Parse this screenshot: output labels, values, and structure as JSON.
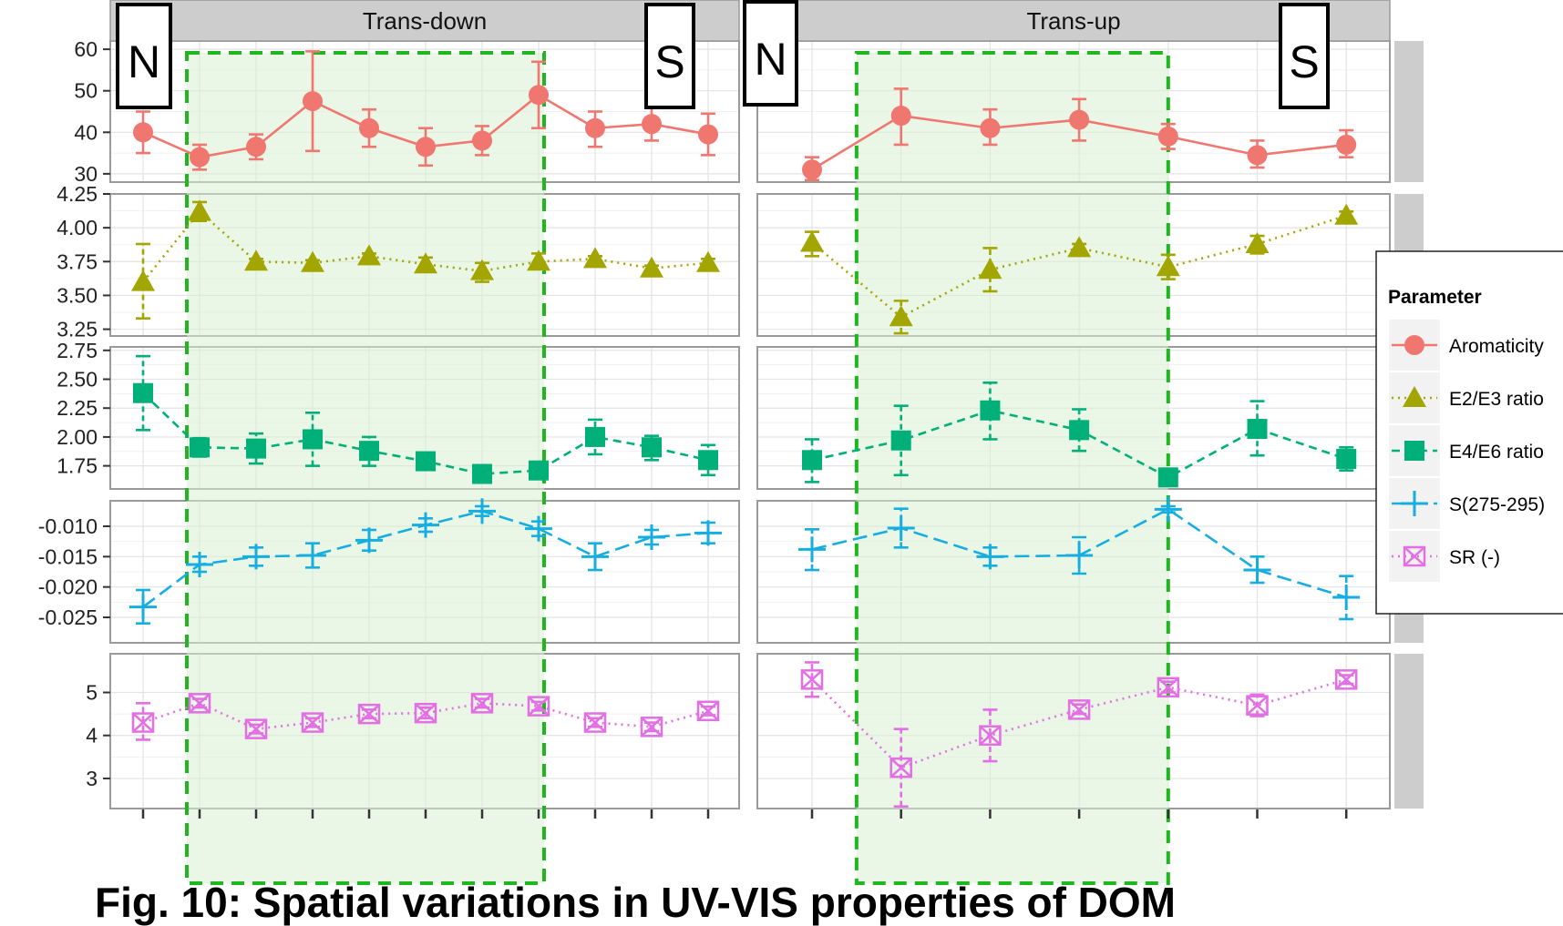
{
  "chart_data": {
    "type": "line",
    "facets": [
      "Trans-down",
      "Trans-up"
    ],
    "site_markers": {
      "north": "N",
      "south": "S"
    },
    "legend": {
      "title": "Parameter",
      "position": "right",
      "entries": [
        "Aromaticity",
        "E2/E3 ratio",
        "E4/E6 ratio",
        "S(275-295)",
        "SR (-)"
      ]
    },
    "colors": {
      "Aromaticity": "#f07670",
      "E2/E3 ratio": "#a3a500",
      "E4/E6 ratio": "#00b078",
      "S(275-295)": "#16aee0",
      "SR (-)": "#e36fe4",
      "highlight_fill": "#d8f1d4",
      "highlight_border": "#1fb61f",
      "strip": "#cdcdcd",
      "panel_border": "#9a9a9a"
    },
    "grid": true,
    "highlight": {
      "style": "green dashed box with light green fill",
      "Trans-down": {
        "from_site": 2,
        "to_site": 8
      },
      "Trans-up": {
        "from_site": 1.5,
        "to_site": 5
      }
    },
    "rows": [
      {
        "parameter": "Aromaticity",
        "marker": "circle",
        "line": "solid",
        "ylim": [
          28,
          62
        ],
        "yticks": [
          "30",
          "40",
          "50",
          "60"
        ],
        "ytick_values": [
          30,
          40,
          50,
          60
        ],
        "Trans-down": [
          {
            "site": 1,
            "y": 40,
            "lo": 35,
            "hi": 45
          },
          {
            "site": 2,
            "y": 34,
            "lo": 31,
            "hi": 37
          },
          {
            "site": 3,
            "y": 36.5,
            "lo": 33.5,
            "hi": 39.5
          },
          {
            "site": 4,
            "y": 47.5,
            "lo": 35.5,
            "hi": 59.5
          },
          {
            "site": 5,
            "y": 41,
            "lo": 36.5,
            "hi": 45.5
          },
          {
            "site": 6,
            "y": 36.5,
            "lo": 32,
            "hi": 41
          },
          {
            "site": 7,
            "y": 38,
            "lo": 34.5,
            "hi": 41.5
          },
          {
            "site": 8,
            "y": 49,
            "lo": 41,
            "hi": 57
          },
          {
            "site": 9,
            "y": 41,
            "lo": 36.5,
            "hi": 45
          },
          {
            "site": 10,
            "y": 42,
            "lo": 38,
            "hi": 46
          },
          {
            "site": 11,
            "y": 39.5,
            "lo": 34.5,
            "hi": 44.5
          }
        ],
        "Trans-up": [
          {
            "site": 1,
            "y": 31,
            "lo": 28.5,
            "hi": 34
          },
          {
            "site": 2,
            "y": 44,
            "lo": 37,
            "hi": 50.5
          },
          {
            "site": 3,
            "y": 41,
            "lo": 37,
            "hi": 45.5
          },
          {
            "site": 4,
            "y": 43,
            "lo": 38,
            "hi": 48
          },
          {
            "site": 5,
            "y": 39,
            "lo": 36,
            "hi": 42
          },
          {
            "site": 6,
            "y": 34.5,
            "lo": 31.5,
            "hi": 38
          },
          {
            "site": 7,
            "y": 37,
            "lo": 34,
            "hi": 40.5
          }
        ]
      },
      {
        "parameter": "E2/E3 ratio",
        "marker": "triangle",
        "line": "dotted",
        "ylim": [
          3.2,
          4.25
        ],
        "yticks": [
          "3.25",
          "3.50",
          "3.75",
          "4.00",
          "4.25"
        ],
        "ytick_values": [
          3.25,
          3.5,
          3.75,
          4.0,
          4.25
        ],
        "Trans-down": [
          {
            "site": 1,
            "y": 3.6,
            "lo": 3.33,
            "hi": 3.88
          },
          {
            "site": 2,
            "y": 4.12,
            "lo": 4.05,
            "hi": 4.19
          },
          {
            "site": 3,
            "y": 3.75,
            "lo": 3.73,
            "hi": 3.77
          },
          {
            "site": 4,
            "y": 3.74,
            "lo": 3.72,
            "hi": 3.76
          },
          {
            "site": 5,
            "y": 3.79,
            "lo": 3.77,
            "hi": 3.81
          },
          {
            "site": 6,
            "y": 3.73,
            "lo": 3.69,
            "hi": 3.78
          },
          {
            "site": 7,
            "y": 3.68,
            "lo": 3.6,
            "hi": 3.74
          },
          {
            "site": 8,
            "y": 3.75,
            "lo": 3.7,
            "hi": 3.81
          },
          {
            "site": 9,
            "y": 3.77,
            "lo": 3.75,
            "hi": 3.79
          },
          {
            "site": 10,
            "y": 3.7,
            "lo": 3.68,
            "hi": 3.72
          },
          {
            "site": 11,
            "y": 3.74,
            "lo": 3.71,
            "hi": 3.77
          }
        ],
        "Trans-up": [
          {
            "site": 1,
            "y": 3.89,
            "lo": 3.79,
            "hi": 3.97
          },
          {
            "site": 2,
            "y": 3.34,
            "lo": 3.22,
            "hi": 3.46
          },
          {
            "site": 3,
            "y": 3.69,
            "lo": 3.53,
            "hi": 3.85
          },
          {
            "site": 4,
            "y": 3.85,
            "lo": 3.82,
            "hi": 3.88
          },
          {
            "site": 5,
            "y": 3.71,
            "lo": 3.62,
            "hi": 3.8
          },
          {
            "site": 6,
            "y": 3.88,
            "lo": 3.81,
            "hi": 3.94
          },
          {
            "site": 7,
            "y": 4.09,
            "lo": 4.05,
            "hi": 4.12
          }
        ]
      },
      {
        "parameter": "E4/E6 ratio",
        "marker": "square",
        "line": "dashed",
        "ylim": [
          1.55,
          2.78
        ],
        "yticks": [
          "1.75",
          "2.00",
          "2.25",
          "2.50",
          "2.75"
        ],
        "ytick_values": [
          1.75,
          2.0,
          2.25,
          2.5,
          2.75
        ],
        "Trans-down": [
          {
            "site": 1,
            "y": 2.38,
            "lo": 2.06,
            "hi": 2.7
          },
          {
            "site": 2,
            "y": 1.91,
            "lo": 1.83,
            "hi": 1.99
          },
          {
            "site": 3,
            "y": 1.9,
            "lo": 1.77,
            "hi": 2.03
          },
          {
            "site": 4,
            "y": 1.98,
            "lo": 1.75,
            "hi": 2.21
          },
          {
            "site": 5,
            "y": 1.88,
            "lo": 1.75,
            "hi": 2.0
          },
          {
            "site": 6,
            "y": 1.79,
            "lo": 1.73,
            "hi": 1.85
          },
          {
            "site": 7,
            "y": 1.68,
            "lo": 1.65,
            "hi": 1.71
          },
          {
            "site": 8,
            "y": 1.71,
            "lo": 1.68,
            "hi": 1.74
          },
          {
            "site": 9,
            "y": 2.0,
            "lo": 1.85,
            "hi": 2.15
          },
          {
            "site": 10,
            "y": 1.91,
            "lo": 1.8,
            "hi": 2.01
          },
          {
            "site": 11,
            "y": 1.8,
            "lo": 1.67,
            "hi": 1.93
          }
        ],
        "Trans-up": [
          {
            "site": 1,
            "y": 1.8,
            "lo": 1.61,
            "hi": 1.98
          },
          {
            "site": 2,
            "y": 1.97,
            "lo": 1.67,
            "hi": 2.27
          },
          {
            "site": 3,
            "y": 2.23,
            "lo": 1.98,
            "hi": 2.47
          },
          {
            "site": 4,
            "y": 2.06,
            "lo": 1.88,
            "hi": 2.24
          },
          {
            "site": 5,
            "y": 1.65,
            "lo": 1.62,
            "hi": 1.69
          },
          {
            "site": 6,
            "y": 2.07,
            "lo": 1.84,
            "hi": 2.31
          },
          {
            "site": 7,
            "y": 1.81,
            "lo": 1.71,
            "hi": 1.91
          }
        ]
      },
      {
        "parameter": "S(275-295)",
        "marker": "cross",
        "line": "longdash",
        "ylim": [
          -0.0292,
          -0.0058
        ],
        "yticks": [
          "-0.010",
          "-0.015",
          "-0.020",
          "-0.025"
        ],
        "ytick_values": [
          -0.01,
          -0.015,
          -0.02,
          -0.025
        ],
        "Trans-down": [
          {
            "site": 1,
            "y": -0.0233,
            "lo": -0.026,
            "hi": -0.0205
          },
          {
            "site": 2,
            "y": -0.0163,
            "lo": -0.0175,
            "hi": -0.015
          },
          {
            "site": 3,
            "y": -0.015,
            "lo": -0.0165,
            "hi": -0.0135
          },
          {
            "site": 4,
            "y": -0.0148,
            "lo": -0.0168,
            "hi": -0.0128
          },
          {
            "site": 5,
            "y": -0.0123,
            "lo": -0.014,
            "hi": -0.0106
          },
          {
            "site": 6,
            "y": -0.0098,
            "lo": -0.0109,
            "hi": -0.0087
          },
          {
            "site": 7,
            "y": -0.0075,
            "lo": -0.0083,
            "hi": -0.0067
          },
          {
            "site": 8,
            "y": -0.0104,
            "lo": -0.0116,
            "hi": -0.0092
          },
          {
            "site": 9,
            "y": -0.015,
            "lo": -0.0172,
            "hi": -0.0128
          },
          {
            "site": 10,
            "y": -0.0118,
            "lo": -0.013,
            "hi": -0.0106
          },
          {
            "site": 11,
            "y": -0.0111,
            "lo": -0.0128,
            "hi": -0.0094
          }
        ],
        "Trans-up": [
          {
            "site": 1,
            "y": -0.0138,
            "lo": -0.0172,
            "hi": -0.0105
          },
          {
            "site": 2,
            "y": -0.0103,
            "lo": -0.0135,
            "hi": -0.0071
          },
          {
            "site": 3,
            "y": -0.015,
            "lo": -0.0165,
            "hi": -0.0135
          },
          {
            "site": 4,
            "y": -0.0148,
            "lo": -0.0178,
            "hi": -0.0118
          },
          {
            "site": 5,
            "y": -0.0072,
            "lo": -0.0077,
            "hi": -0.0067
          },
          {
            "site": 6,
            "y": -0.0172,
            "lo": -0.0193,
            "hi": -0.015
          },
          {
            "site": 7,
            "y": -0.0217,
            "lo": -0.0253,
            "hi": -0.0182
          }
        ]
      },
      {
        "parameter": "SR (-)",
        "marker": "square-cross",
        "line": "dotted",
        "ylim": [
          2.3,
          5.9
        ],
        "yticks": [
          "3",
          "4",
          "5"
        ],
        "ytick_values": [
          3,
          4,
          5
        ],
        "Trans-down": [
          {
            "site": 1,
            "y": 4.3,
            "lo": 3.9,
            "hi": 4.75
          },
          {
            "site": 2,
            "y": 4.75,
            "lo": 4.65,
            "hi": 4.85
          },
          {
            "site": 3,
            "y": 4.15,
            "lo": 4.05,
            "hi": 4.25
          },
          {
            "site": 4,
            "y": 4.3,
            "lo": 4.2,
            "hi": 4.4
          },
          {
            "site": 5,
            "y": 4.5,
            "lo": 4.4,
            "hi": 4.6
          },
          {
            "site": 6,
            "y": 4.52,
            "lo": 4.4,
            "hi": 4.65
          },
          {
            "site": 7,
            "y": 4.75,
            "lo": 4.65,
            "hi": 4.85
          },
          {
            "site": 8,
            "y": 4.68,
            "lo": 4.58,
            "hi": 4.78
          },
          {
            "site": 9,
            "y": 4.3,
            "lo": 4.2,
            "hi": 4.4
          },
          {
            "site": 10,
            "y": 4.2,
            "lo": 4.1,
            "hi": 4.3
          },
          {
            "site": 11,
            "y": 4.57,
            "lo": 4.47,
            "hi": 4.67
          }
        ],
        "Trans-up": [
          {
            "site": 1,
            "y": 5.3,
            "lo": 4.9,
            "hi": 5.7
          },
          {
            "site": 2,
            "y": 3.25,
            "lo": 2.35,
            "hi": 4.15
          },
          {
            "site": 3,
            "y": 4.0,
            "lo": 3.4,
            "hi": 4.6
          },
          {
            "site": 4,
            "y": 4.6,
            "lo": 4.5,
            "hi": 4.72
          },
          {
            "site": 5,
            "y": 5.12,
            "lo": 5.0,
            "hi": 5.25
          },
          {
            "site": 6,
            "y": 4.7,
            "lo": 4.45,
            "hi": 4.95
          },
          {
            "site": 7,
            "y": 5.3,
            "lo": 5.2,
            "hi": 5.4
          }
        ]
      }
    ]
  },
  "caption": "Fig. 10: Spatial variations in UV-VIS properties of DOM"
}
